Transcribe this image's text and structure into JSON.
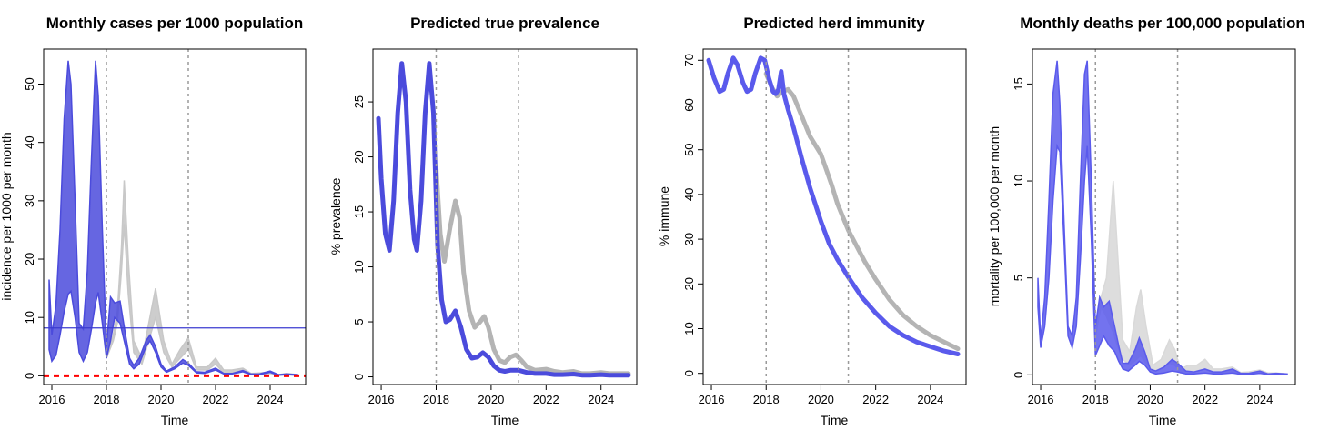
{
  "chart_data": [
    {
      "type": "area",
      "title": "Monthly cases per 1000 population",
      "xlabel": "Time",
      "ylabel": "incidence per 1000 per month",
      "xlim": [
        2015.7,
        2025.3
      ],
      "ylim": [
        -1.5,
        56
      ],
      "xticks": [
        2016,
        2018,
        2020,
        2022,
        2024
      ],
      "yticks": [
        0,
        10,
        20,
        30,
        40,
        50
      ],
      "vlines": [
        2018,
        2021
      ],
      "hlines": [
        {
          "y": 8.2,
          "color": "#3b3bd0",
          "style": "solid"
        },
        {
          "y": 0,
          "color": "#ff0000",
          "style": "dashed"
        }
      ],
      "series": [
        {
          "band": "grey",
          "color": "#c8c8c8",
          "x": [
            2018.0,
            2018.25,
            2018.4,
            2018.55,
            2018.65,
            2018.8,
            2019.0,
            2019.3,
            2019.55,
            2019.8,
            2020.1,
            2020.4,
            2020.7,
            2021.0,
            2021.3,
            2021.7,
            2022.0,
            2022.3,
            2022.6,
            2023.0,
            2023.3,
            2023.6,
            2024.0,
            2024.3,
            2024.6,
            2025.0
          ],
          "lower": [
            3.0,
            6.0,
            9.0,
            18.0,
            26.0,
            14.0,
            4.0,
            2.0,
            6.0,
            10.0,
            4.0,
            1.5,
            3.0,
            4.5,
            1.0,
            1.0,
            2.0,
            0.5,
            0.5,
            0.8,
            0.2,
            0.3,
            0.4,
            0.1,
            0.2,
            0.1
          ],
          "upper": [
            3.5,
            7.0,
            11.0,
            22.0,
            33.5,
            20.0,
            6.0,
            3.0,
            9.0,
            15.0,
            6.0,
            2.0,
            4.5,
            6.5,
            1.5,
            1.5,
            3.0,
            1.0,
            1.0,
            1.3,
            0.4,
            0.5,
            0.6,
            0.2,
            0.4,
            0.2
          ]
        },
        {
          "band": "blue",
          "color": "#4b4bdc",
          "x": [
            2015.9,
            2016.0,
            2016.15,
            2016.3,
            2016.45,
            2016.6,
            2016.7,
            2016.85,
            2017.0,
            2017.15,
            2017.3,
            2017.45,
            2017.6,
            2017.7,
            2017.85,
            2018.0,
            2018.15,
            2018.3,
            2018.5,
            2018.7,
            2018.85,
            2019.0,
            2019.2,
            2019.45,
            2019.6,
            2019.8,
            2020.0,
            2020.2,
            2020.5,
            2020.8,
            2021.0,
            2021.3,
            2021.6,
            2022.0,
            2022.3,
            2022.6,
            2023.0,
            2023.3,
            2023.6,
            2024.0,
            2024.3,
            2024.6,
            2025.0
          ],
          "lower": [
            4.5,
            2.5,
            3.5,
            7.0,
            11.0,
            14.0,
            14.5,
            10.0,
            4.0,
            2.5,
            4.0,
            8.0,
            12.5,
            14.3,
            9.0,
            3.0,
            6.0,
            10.0,
            9.0,
            5.0,
            2.0,
            1.2,
            2.0,
            5.0,
            6.0,
            4.0,
            1.5,
            0.6,
            1.2,
            2.2,
            1.8,
            0.5,
            0.4,
            1.0,
            0.3,
            0.3,
            0.7,
            0.2,
            0.2,
            0.6,
            0.1,
            0.2,
            0.1
          ],
          "upper": [
            16.5,
            7.0,
            12.0,
            25.0,
            44.0,
            54.0,
            50.0,
            30.0,
            9.0,
            8.0,
            18.0,
            37.0,
            54.0,
            48.0,
            25.0,
            5.0,
            13.5,
            12.5,
            12.8,
            7.0,
            3.0,
            1.8,
            3.0,
            6.0,
            7.0,
            5.0,
            2.0,
            0.8,
            1.5,
            2.8,
            2.2,
            0.7,
            0.6,
            1.3,
            0.4,
            0.4,
            0.9,
            0.3,
            0.3,
            0.8,
            0.2,
            0.3,
            0.2
          ]
        }
      ]
    },
    {
      "type": "line",
      "title": "Predicted true prevalence",
      "xlabel": "Time",
      "ylabel": "% prevalence",
      "xlim": [
        2015.7,
        2025.3
      ],
      "ylim": [
        -0.7,
        29.8
      ],
      "xticks": [
        2016,
        2018,
        2020,
        2022,
        2024
      ],
      "yticks": [
        0,
        5,
        10,
        15,
        20,
        25
      ],
      "vlines": [
        2018,
        2021
      ],
      "series": [
        {
          "color": "#b4b4b4",
          "x": [
            2018.0,
            2018.15,
            2018.3,
            2018.5,
            2018.7,
            2018.85,
            2019.0,
            2019.2,
            2019.4,
            2019.6,
            2019.75,
            2019.9,
            2020.1,
            2020.3,
            2020.5,
            2020.7,
            2020.9,
            2021.1,
            2021.3,
            2021.6,
            2022.0,
            2022.3,
            2022.6,
            2023.0,
            2023.3,
            2023.6,
            2024.0,
            2024.3,
            2024.6,
            2025.0
          ],
          "y": [
            19.0,
            13.0,
            10.5,
            13.5,
            16.0,
            14.5,
            9.5,
            6.0,
            4.5,
            5.0,
            5.5,
            4.5,
            2.5,
            1.5,
            1.3,
            1.8,
            2.0,
            1.5,
            0.9,
            0.6,
            0.7,
            0.5,
            0.4,
            0.5,
            0.3,
            0.3,
            0.4,
            0.3,
            0.3,
            0.3
          ]
        },
        {
          "color": "#4b4bdc",
          "x": [
            2015.9,
            2016.0,
            2016.15,
            2016.3,
            2016.45,
            2016.6,
            2016.75,
            2016.9,
            2017.05,
            2017.2,
            2017.3,
            2017.45,
            2017.6,
            2017.75,
            2017.9,
            2018.05,
            2018.2,
            2018.35,
            2018.5,
            2018.7,
            2018.9,
            2019.1,
            2019.3,
            2019.5,
            2019.7,
            2019.9,
            2020.1,
            2020.3,
            2020.5,
            2020.7,
            2021.0,
            2021.3,
            2021.6,
            2022.0,
            2022.3,
            2022.6,
            2023.0,
            2023.3,
            2023.6,
            2024.0,
            2024.3,
            2024.6,
            2025.0
          ],
          "y": [
            23.5,
            18.0,
            13.0,
            11.5,
            16.0,
            24.0,
            28.5,
            25.0,
            17.0,
            12.5,
            11.5,
            16.0,
            24.0,
            28.5,
            24.0,
            12.0,
            7.0,
            5.0,
            5.2,
            6.0,
            4.5,
            2.5,
            1.7,
            1.8,
            2.2,
            1.8,
            1.0,
            0.6,
            0.5,
            0.6,
            0.6,
            0.4,
            0.3,
            0.3,
            0.2,
            0.2,
            0.25,
            0.15,
            0.15,
            0.2,
            0.15,
            0.15,
            0.15
          ]
        }
      ]
    },
    {
      "type": "line",
      "title": "Predicted herd immunity",
      "xlabel": "Time",
      "ylabel": "% immune",
      "xlim": [
        2015.7,
        2025.3
      ],
      "ylim": [
        -2.5,
        72.5
      ],
      "xticks": [
        2016,
        2018,
        2020,
        2022,
        2024
      ],
      "yticks": [
        0,
        10,
        20,
        30,
        40,
        50,
        60,
        70
      ],
      "vlines": [
        2018,
        2021
      ],
      "series": [
        {
          "color": "#b4b4b4",
          "x": [
            2018.0,
            2018.2,
            2018.4,
            2018.6,
            2018.8,
            2019.0,
            2019.2,
            2019.4,
            2019.6,
            2019.8,
            2020.0,
            2020.2,
            2020.4,
            2020.6,
            2020.8,
            2021.0,
            2021.3,
            2021.6,
            2022.0,
            2022.5,
            2023.0,
            2023.5,
            2024.0,
            2024.5,
            2025.0
          ],
          "y": [
            67.0,
            64.0,
            62.0,
            63.0,
            63.5,
            62.0,
            59.0,
            56.0,
            53.0,
            51.0,
            49.0,
            45.5,
            42.0,
            38.0,
            35.0,
            32.0,
            28.5,
            25.0,
            21.0,
            16.5,
            13.0,
            10.5,
            8.5,
            7.0,
            5.5
          ]
        },
        {
          "color": "#5a5aec",
          "x": [
            2015.9,
            2016.1,
            2016.3,
            2016.45,
            2016.6,
            2016.8,
            2016.95,
            2017.15,
            2017.3,
            2017.45,
            2017.6,
            2017.8,
            2017.95,
            2018.1,
            2018.25,
            2018.35,
            2018.45,
            2018.55,
            2018.65,
            2018.8,
            2019.0,
            2019.3,
            2019.6,
            2020.0,
            2020.3,
            2020.6,
            2021.0,
            2021.5,
            2022.0,
            2022.5,
            2023.0,
            2023.5,
            2024.0,
            2024.5,
            2025.0
          ],
          "y": [
            70.0,
            66.0,
            63.0,
            63.5,
            67.0,
            70.5,
            69.0,
            65.0,
            63.0,
            63.5,
            67.0,
            70.5,
            70.0,
            66.0,
            63.0,
            62.5,
            63.5,
            67.5,
            62.5,
            59.0,
            55.0,
            48.0,
            41.5,
            34.0,
            29.0,
            25.5,
            21.5,
            17.0,
            13.5,
            10.5,
            8.5,
            7.0,
            6.0,
            5.0,
            4.3
          ]
        }
      ]
    },
    {
      "type": "area",
      "title": "Monthly deaths per 100,000 population",
      "xlabel": "Time",
      "ylabel": "mortality per 100,000 per month",
      "xlim": [
        2015.7,
        2025.3
      ],
      "ylim": [
        -0.5,
        16.8
      ],
      "xticks": [
        2016,
        2018,
        2020,
        2022,
        2024
      ],
      "yticks": [
        0,
        5,
        10,
        15
      ],
      "vlines": [
        2018,
        2021
      ],
      "series": [
        {
          "band": "grey",
          "color": "#d9d9d9",
          "x": [
            2018.0,
            2018.2,
            2018.4,
            2018.55,
            2018.65,
            2018.8,
            2019.0,
            2019.25,
            2019.5,
            2019.65,
            2019.85,
            2020.1,
            2020.4,
            2020.7,
            2020.9,
            2021.1,
            2021.4,
            2021.7,
            2022.0,
            2022.3,
            2022.6,
            2023.0,
            2023.3,
            2023.6,
            2024.0,
            2024.3,
            2024.6,
            2025.0
          ],
          "lower": [
            2.0,
            3.5,
            3.0,
            2.5,
            2.2,
            1.5,
            0.8,
            0.5,
            0.8,
            1.0,
            0.6,
            0.2,
            0.3,
            0.6,
            0.5,
            0.1,
            0.2,
            0.2,
            0.3,
            0.1,
            0.1,
            0.15,
            0.05,
            0.05,
            0.1,
            0.05,
            0.05,
            0.03
          ],
          "upper": [
            2.5,
            4.0,
            5.0,
            8.0,
            10.0,
            6.5,
            1.8,
            1.2,
            3.5,
            4.4,
            2.5,
            0.5,
            0.8,
            1.8,
            1.3,
            0.3,
            0.5,
            0.5,
            0.8,
            0.3,
            0.3,
            0.4,
            0.12,
            0.15,
            0.25,
            0.1,
            0.1,
            0.05
          ]
        },
        {
          "band": "blue",
          "color": "#5a5aec",
          "x": [
            2015.9,
            2016.0,
            2016.15,
            2016.3,
            2016.45,
            2016.6,
            2016.7,
            2016.85,
            2017.0,
            2017.15,
            2017.3,
            2017.45,
            2017.6,
            2017.7,
            2017.85,
            2018.0,
            2018.15,
            2018.3,
            2018.5,
            2018.7,
            2018.85,
            2019.0,
            2019.2,
            2019.45,
            2019.6,
            2019.8,
            2020.0,
            2020.2,
            2020.5,
            2020.8,
            2021.0,
            2021.3,
            2021.6,
            2022.0,
            2022.3,
            2022.6,
            2023.0,
            2023.3,
            2023.6,
            2024.0,
            2024.3,
            2024.6,
            2025.0
          ],
          "lower": [
            3.5,
            1.4,
            2.5,
            5.0,
            9.0,
            11.8,
            11.5,
            7.0,
            2.0,
            1.4,
            2.5,
            6.0,
            10.0,
            11.8,
            7.0,
            1.0,
            1.5,
            2.0,
            1.5,
            1.2,
            0.7,
            0.3,
            0.2,
            0.5,
            0.7,
            0.5,
            0.15,
            0.05,
            0.1,
            0.2,
            0.15,
            0.05,
            0.05,
            0.1,
            0.05,
            0.05,
            0.1,
            0.03,
            0.03,
            0.08,
            0.02,
            0.03,
            0.02
          ],
          "upper": [
            5.0,
            1.8,
            4.0,
            9.0,
            14.5,
            16.2,
            14.0,
            8.0,
            2.5,
            2.0,
            4.0,
            10.0,
            15.5,
            16.2,
            10.0,
            2.5,
            4.0,
            3.5,
            3.8,
            2.5,
            1.5,
            0.6,
            0.6,
            1.3,
            1.9,
            1.2,
            0.3,
            0.2,
            0.4,
            0.8,
            0.6,
            0.2,
            0.15,
            0.3,
            0.15,
            0.15,
            0.3,
            0.08,
            0.08,
            0.2,
            0.05,
            0.08,
            0.05
          ]
        }
      ]
    }
  ]
}
